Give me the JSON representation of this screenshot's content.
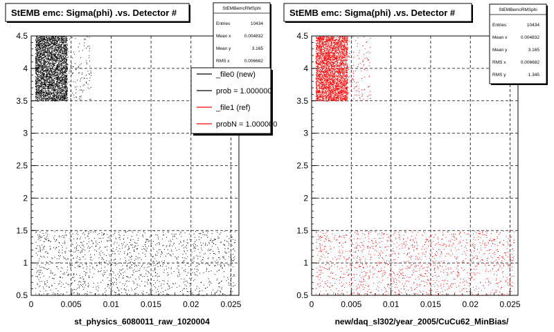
{
  "chart_data": [
    {
      "type": "scatter",
      "title": "StEMB emc: Sigma(phi) .vs. Detector #",
      "xlabel": "st_physics_6080011_raw_1020004",
      "xlim": [
        0,
        0.026
      ],
      "ylim": [
        0.5,
        4.5
      ],
      "xticks": [
        {
          "v": 0,
          "label": "0"
        },
        {
          "v": 0.005,
          "label": "0.005"
        },
        {
          "v": 0.01,
          "label": "0.01"
        },
        {
          "v": 0.015,
          "label": "0.015"
        },
        {
          "v": 0.02,
          "label": "0.02"
        },
        {
          "v": 0.025,
          "label": "0.025"
        }
      ],
      "yticks": [
        {
          "v": 0.5,
          "label": "0.5"
        },
        {
          "v": 1,
          "label": "1"
        },
        {
          "v": 1.5,
          "label": "1.5"
        },
        {
          "v": 2,
          "label": "2"
        },
        {
          "v": 2.5,
          "label": "2.5"
        },
        {
          "v": 3,
          "label": "3"
        },
        {
          "v": 3.5,
          "label": "3.5"
        },
        {
          "v": 4,
          "label": "4"
        },
        {
          "v": 4.5,
          "label": "4.5"
        }
      ],
      "grid": true,
      "point_color": "#000000",
      "clusters": [
        {
          "x_range": [
            0.0005,
            0.0045
          ],
          "y_range": [
            3.5,
            4.5
          ],
          "density": "high"
        },
        {
          "x_range": [
            0.0045,
            0.0075
          ],
          "y_range": [
            3.5,
            4.5
          ],
          "density": "low"
        },
        {
          "x_range": [
            0.0005,
            0.0255
          ],
          "y_range": [
            0.5,
            1.5
          ],
          "density": "medium"
        }
      ],
      "stats": {
        "header": "StEMBemcRMSphi",
        "rows": [
          {
            "label": "Entries",
            "value": "10434"
          },
          {
            "label": "Mean x",
            "value": "0.004832"
          },
          {
            "label": "Mean y",
            "value": "3.165"
          },
          {
            "label": "RMS x",
            "value": "0.006682"
          }
        ]
      },
      "legend": {
        "entries": [
          {
            "label": "_file0 (new)",
            "color": "#000000"
          },
          {
            "label": "prob = 1.000000",
            "color": "#000000"
          },
          {
            "label": "_file1 (ref)",
            "color": "#ff0000"
          },
          {
            "label": "probN = 1.000000",
            "color": "#ff0000"
          }
        ]
      }
    },
    {
      "type": "scatter",
      "title": "StEMB emc: Sigma(phi) .vs. Detector #",
      "xlabel": "new/daq_sl302/year_2005/CuCu62_MinBias/",
      "xlim": [
        0,
        0.026
      ],
      "ylim": [
        0.5,
        4.5
      ],
      "xticks": [
        {
          "v": 0,
          "label": "0"
        },
        {
          "v": 0.005,
          "label": "0.005"
        },
        {
          "v": 0.01,
          "label": "0.01"
        },
        {
          "v": 0.015,
          "label": "0.015"
        },
        {
          "v": 0.02,
          "label": "0.02"
        },
        {
          "v": 0.025,
          "label": "0.025"
        }
      ],
      "yticks": [
        {
          "v": 0.5,
          "label": "0.5"
        },
        {
          "v": 1,
          "label": "1"
        },
        {
          "v": 1.5,
          "label": "1.5"
        },
        {
          "v": 2,
          "label": "2"
        },
        {
          "v": 2.5,
          "label": "2.5"
        },
        {
          "v": 3,
          "label": "3"
        },
        {
          "v": 3.5,
          "label": "3.5"
        },
        {
          "v": 4,
          "label": "4"
        },
        {
          "v": 4.5,
          "label": "4.5"
        }
      ],
      "grid": true,
      "point_color": "#ff0000",
      "clusters": [
        {
          "x_range": [
            0.0005,
            0.0045
          ],
          "y_range": [
            3.5,
            4.5
          ],
          "density": "high"
        },
        {
          "x_range": [
            0.0045,
            0.0075
          ],
          "y_range": [
            3.5,
            4.5
          ],
          "density": "low"
        },
        {
          "x_range": [
            0.0005,
            0.0255
          ],
          "y_range": [
            0.5,
            1.5
          ],
          "density": "medium"
        }
      ],
      "stats": {
        "header": "StEMBemcRMSphi",
        "rows": [
          {
            "label": "Entries",
            "value": "10434"
          },
          {
            "label": "Mean x",
            "value": "0.004832"
          },
          {
            "label": "Mean y",
            "value": "3.165"
          },
          {
            "label": "RMS x",
            "value": "0.006682"
          },
          {
            "label": "RMS y",
            "value": "1.345"
          }
        ]
      }
    }
  ]
}
